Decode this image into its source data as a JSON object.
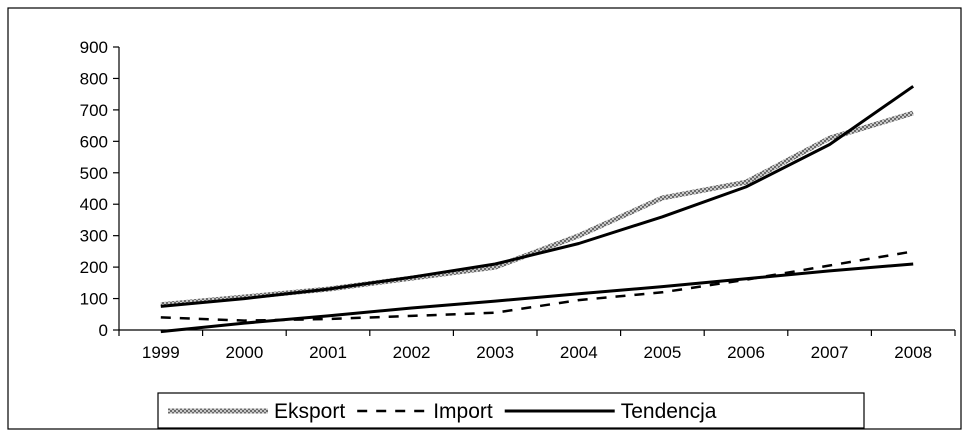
{
  "chart_data": {
    "type": "line",
    "title": "",
    "xlabel": "",
    "ylabel": "",
    "categories": [
      "1999",
      "2000",
      "2001",
      "2002",
      "2003",
      "2004",
      "2005",
      "2006",
      "2007",
      "2008"
    ],
    "ylim": [
      0,
      900
    ],
    "yticks": [
      "0",
      "100",
      "200",
      "300",
      "400",
      "500",
      "600",
      "700",
      "800",
      "900"
    ],
    "grid": false,
    "legend_position": "bottom",
    "series": [
      {
        "name": "Eksport",
        "style": "textured-gray",
        "color": "#8c8c8c",
        "values": [
          80,
          105,
          130,
          165,
          200,
          300,
          420,
          470,
          610,
          690
        ]
      },
      {
        "name": "Import",
        "style": "dashed",
        "color": "#000000",
        "values": [
          40,
          30,
          35,
          45,
          55,
          95,
          120,
          160,
          205,
          250
        ]
      },
      {
        "name": "Tendencja",
        "style": "solid",
        "color": "#000000",
        "values": [
          75,
          100,
          130,
          168,
          210,
          275,
          360,
          455,
          590,
          775
        ]
      },
      {
        "name": "",
        "style": "solid",
        "color": "#000000",
        "values": [
          -5,
          22,
          45,
          70,
          92,
          115,
          138,
          163,
          188,
          210
        ]
      }
    ]
  }
}
